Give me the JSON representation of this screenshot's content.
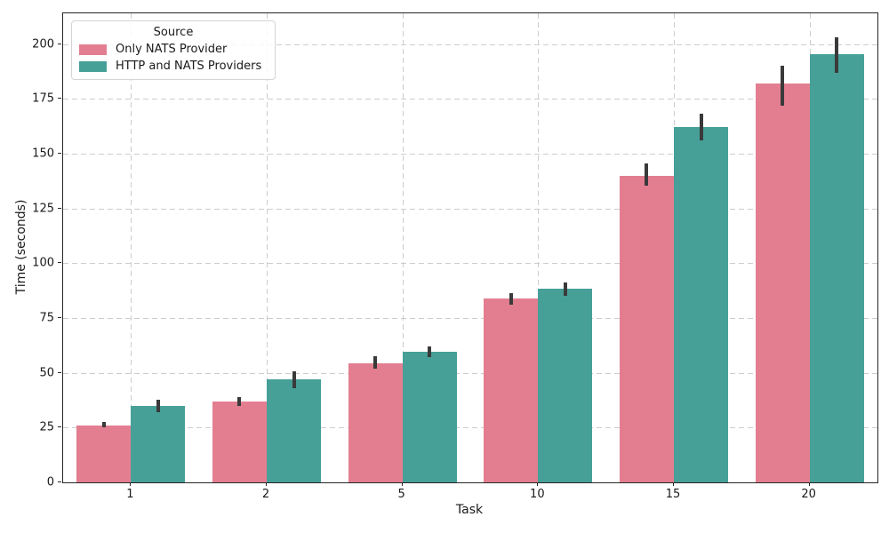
{
  "chart_data": {
    "type": "bar",
    "title": "",
    "xlabel": "Task",
    "ylabel": "Time (seconds)",
    "categories": [
      "1",
      "2",
      "5",
      "10",
      "15",
      "20"
    ],
    "series": [
      {
        "name": "Only NATS Provider",
        "color": "#e37e90",
        "values": [
          26,
          37,
          54.5,
          84,
          140,
          182
        ],
        "error_ranges": [
          [
            25,
            27.5
          ],
          [
            35,
            39
          ],
          [
            52,
            57.5
          ],
          [
            81,
            86.5
          ],
          [
            135.5,
            145.5
          ],
          [
            172,
            190
          ]
        ]
      },
      {
        "name": "HTTP and NATS Providers",
        "color": "#46a098",
        "values": [
          35,
          47,
          59.5,
          88.5,
          162,
          195.5
        ],
        "error_ranges": [
          [
            32,
            37.5
          ],
          [
            43,
            50.5
          ],
          [
            57,
            62
          ],
          [
            85,
            91
          ],
          [
            156,
            168
          ],
          [
            187,
            203
          ]
        ]
      }
    ],
    "ylim": [
      0,
      214
    ],
    "yticks": [
      0,
      25,
      50,
      75,
      100,
      125,
      150,
      175,
      200
    ],
    "grid": "both-dashed",
    "legend": {
      "title": "Source",
      "position": "upper-left"
    },
    "colors": {
      "error_bar": "#3a3a3a",
      "grid": "#cdcdcd",
      "spine": "#262626"
    }
  }
}
